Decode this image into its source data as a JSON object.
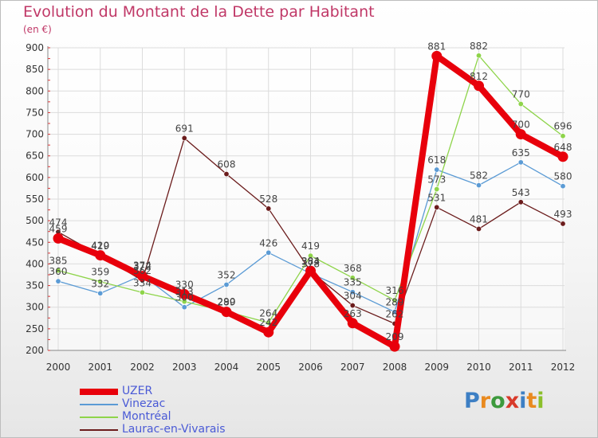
{
  "title": "Evolution du Montant de la Dette par Habitant",
  "unit": "(en €)",
  "logo": {
    "letters": [
      "P",
      "r",
      "o",
      "x",
      "i",
      "t",
      "i"
    ],
    "colors": [
      "#3d7fc4",
      "#e98a1f",
      "#3d9a3d",
      "#d83a2a",
      "#3d7fc4",
      "#e98a1f",
      "#8bbf2a"
    ]
  },
  "chart_data": {
    "type": "line",
    "categories": [
      "2000",
      "2001",
      "2002",
      "2003",
      "2004",
      "2005",
      "2006",
      "2007",
      "2008",
      "2009",
      "2010",
      "2011",
      "2012"
    ],
    "ylim": [
      200,
      900
    ],
    "yticks": [
      200,
      250,
      300,
      350,
      400,
      450,
      500,
      550,
      600,
      650,
      700,
      750,
      800,
      850,
      900
    ],
    "grid": true,
    "legend_position": "bottom-left",
    "series": [
      {
        "name": "UZER",
        "color": "#e8000b",
        "values": [
          459,
          420,
          372,
          330,
          289,
          242,
          384,
          263,
          209,
          881,
          812,
          700,
          648
        ]
      },
      {
        "name": "Vinezac",
        "color": "#5b9bd5",
        "values": [
          360,
          332,
          374,
          300,
          352,
          426,
          378,
          335,
          289,
          618,
          582,
          635,
          580
        ]
      },
      {
        "name": "Montréal",
        "color": "#8ed44a",
        "values": [
          385,
          359,
          334,
          313,
          290,
          264,
          419,
          368,
          316,
          573,
          882,
          770,
          696
        ]
      },
      {
        "name": "Laurac-en-Vivarais",
        "color": "#6b1c1c",
        "values": [
          474,
          419,
          362,
          691,
          608,
          528,
          383,
          304,
          262,
          531,
          481,
          543,
          493
        ]
      }
    ]
  }
}
